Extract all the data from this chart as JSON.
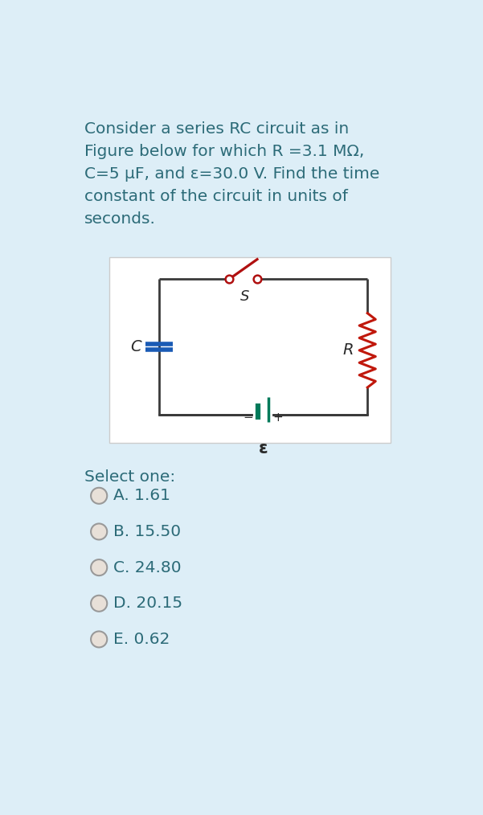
{
  "bg_color": "#ddeef7",
  "text_color": "#2c6b78",
  "circuit_wire_color": "#3a3a3a",
  "resistor_color": "#c0180c",
  "capacitor_color": "#1a5bb5",
  "battery_color": "#007a5a",
  "switch_color": "#b01010",
  "label_color": "#2a2a2a",
  "radio_fill": "#e8e0d8",
  "radio_edge": "#999999",
  "title_text": "Consider a series RC circuit as in\nFigure below for which R =3.1 MΩ,\nC=5 µF, and ε=30.0 V. Find the time\nconstant of the circuit in units of\nseconds.",
  "select_label": "Select one:",
  "options": [
    "A. 1.61",
    "B. 15.50",
    "C. 24.80",
    "D. 20.15",
    "E. 0.62"
  ],
  "title_fontsize": 14.5,
  "option_fontsize": 14.5,
  "select_fontsize": 14.5
}
